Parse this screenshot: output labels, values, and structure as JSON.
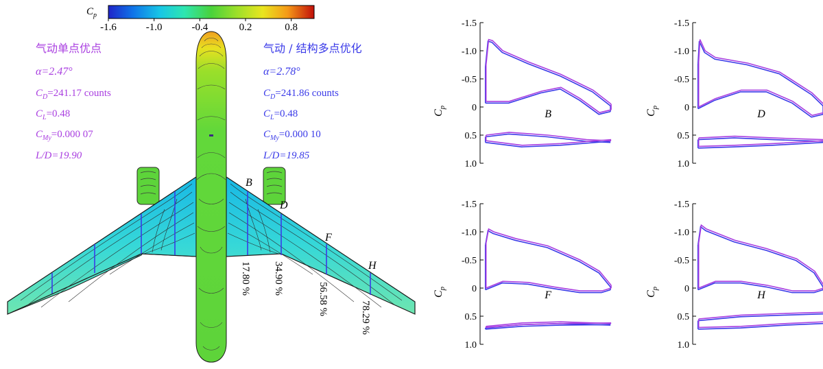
{
  "colorbar": {
    "title": "C",
    "title_sub": "p",
    "ticks": [
      "-1.6",
      "-1.0",
      "-0.4",
      "0.2",
      "0.8"
    ],
    "tick_values": [
      -1.6,
      -1.0,
      -0.4,
      0.2,
      0.8
    ],
    "range": [
      -1.6,
      1.1
    ],
    "colors": [
      "#1f24c8",
      "#0f74e8",
      "#18c6e6",
      "#2ee6b0",
      "#49d23a",
      "#9adf2a",
      "#e9e51f",
      "#f59a18",
      "#e42616",
      "#c10f0a"
    ]
  },
  "left_case": {
    "title": "气动单点优点",
    "alpha": "α=2.47°",
    "cd_main": "C",
    "cd_sub": "D",
    "cd_value": "=241.17 counts",
    "cl_main": "C",
    "cl_sub": "L",
    "cl_value": "=0.48",
    "cmy_main": "C",
    "cmy_sub": "My",
    "cmy_value": "=0.000 07",
    "ld": "L/D=19.90",
    "color": "#a93ee0"
  },
  "right_case": {
    "title": "气动 / 结构多点优化",
    "alpha": "α=2.78°",
    "cd_main": "C",
    "cd_sub": "D",
    "cd_value": "=241.86 counts",
    "cl_main": "C",
    "cl_sub": "L",
    "cl_value": "=0.48",
    "cmy_main": "C",
    "cmy_sub": "My",
    "cmy_value": "=0.000 10",
    "ld": "L/D=19.85",
    "color": "#3a3ae8"
  },
  "wing": {
    "section_letters": [
      "B",
      "D",
      "F",
      "H"
    ],
    "span_percents": [
      "17.80 %",
      "34.90 %",
      "56.58 %",
      "78.29 %"
    ],
    "fuselage_color": "#5fd23a",
    "wing_color": "#3fd8d4"
  },
  "cp_plots": {
    "axis_label_main": "C",
    "axis_label_sub": "p",
    "yticks": [
      "-1.5",
      "-1.0",
      "-0.5",
      "0",
      "0.5",
      "1.0"
    ],
    "ytick_values": [
      -1.5,
      -1.0,
      -0.5,
      0,
      0.5,
      1.0
    ],
    "series_colors": [
      "#a93ee0",
      "#3a3ae8"
    ],
    "panels": [
      {
        "section": "B"
      },
      {
        "section": "D"
      },
      {
        "section": "F"
      },
      {
        "section": "H"
      }
    ]
  }
}
